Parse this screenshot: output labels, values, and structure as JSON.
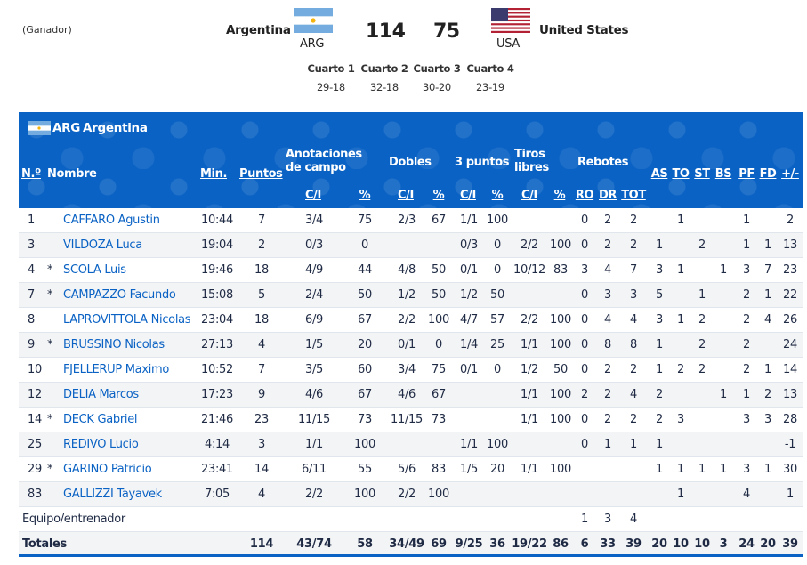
{
  "game": {
    "winner_note": "(Ganador)",
    "home": {
      "name": "Argentina",
      "abbr": "ARG",
      "score": "114"
    },
    "away": {
      "name": "United States",
      "abbr": "USA",
      "score": "75"
    },
    "quarters": [
      {
        "label": "Cuarto 1",
        "score": "29-18"
      },
      {
        "label": "Cuarto 2",
        "score": "32-18"
      },
      {
        "label": "Cuarto 3",
        "score": "30-20"
      },
      {
        "label": "Cuarto 4",
        "score": "23-19"
      }
    ]
  },
  "table": {
    "team_abbr": "ARG",
    "team_name": "Argentina",
    "headers": {
      "num": "N.º",
      "name": "Nombre",
      "min": "Min.",
      "pts": "Puntos",
      "fg": "Anotaciones de campo",
      "dobles": "Dobles",
      "tres": "3 puntos",
      "tl": "Tiros libres",
      "reb": "Rebotes",
      "as": "AS",
      "to": "TO",
      "st": "ST",
      "bs": "BS",
      "pf": "PF",
      "fd": "FD",
      "pm": "+/-",
      "ci": "C/I",
      "pct": "%",
      "ro": "RO",
      "dr": "DR",
      "tot": "TOT"
    },
    "players": [
      {
        "num": "1",
        "star": "",
        "name": "CAFFARO Agustin",
        "min": "10:44",
        "pts": "7",
        "fg_ci": "3/4",
        "fg_p": "75",
        "d_ci": "2/3",
        "d_p": "67",
        "t_ci": "1/1",
        "t_p": "100",
        "tl_ci": "",
        "tl_p": "",
        "ro": "0",
        "dr": "2",
        "tot": "2",
        "as": "",
        "to": "1",
        "st": "",
        "bs": "",
        "pf": "1",
        "fd": "",
        "pm": "2"
      },
      {
        "num": "3",
        "star": "",
        "name": "VILDOZA Luca",
        "min": "19:04",
        "pts": "2",
        "fg_ci": "0/3",
        "fg_p": "0",
        "d_ci": "",
        "d_p": "",
        "t_ci": "0/3",
        "t_p": "0",
        "tl_ci": "2/2",
        "tl_p": "100",
        "ro": "0",
        "dr": "2",
        "tot": "2",
        "as": "1",
        "to": "",
        "st": "2",
        "bs": "",
        "pf": "1",
        "fd": "1",
        "pm": "13"
      },
      {
        "num": "4",
        "star": "*",
        "name": "SCOLA Luis",
        "min": "19:46",
        "pts": "18",
        "fg_ci": "4/9",
        "fg_p": "44",
        "d_ci": "4/8",
        "d_p": "50",
        "t_ci": "0/1",
        "t_p": "0",
        "tl_ci": "10/12",
        "tl_p": "83",
        "ro": "3",
        "dr": "4",
        "tot": "7",
        "as": "3",
        "to": "1",
        "st": "",
        "bs": "1",
        "pf": "3",
        "fd": "7",
        "pm": "23"
      },
      {
        "num": "7",
        "star": "*",
        "name": "CAMPAZZO Facundo",
        "min": "15:08",
        "pts": "5",
        "fg_ci": "2/4",
        "fg_p": "50",
        "d_ci": "1/2",
        "d_p": "50",
        "t_ci": "1/2",
        "t_p": "50",
        "tl_ci": "",
        "tl_p": "",
        "ro": "0",
        "dr": "3",
        "tot": "3",
        "as": "5",
        "to": "",
        "st": "1",
        "bs": "",
        "pf": "2",
        "fd": "1",
        "pm": "22"
      },
      {
        "num": "8",
        "star": "",
        "name": "LAPROVITTOLA Nicolas",
        "min": "23:04",
        "pts": "18",
        "fg_ci": "6/9",
        "fg_p": "67",
        "d_ci": "2/2",
        "d_p": "100",
        "t_ci": "4/7",
        "t_p": "57",
        "tl_ci": "2/2",
        "tl_p": "100",
        "ro": "0",
        "dr": "4",
        "tot": "4",
        "as": "3",
        "to": "1",
        "st": "2",
        "bs": "",
        "pf": "2",
        "fd": "4",
        "pm": "26"
      },
      {
        "num": "9",
        "star": "*",
        "name": "BRUSSINO Nicolas",
        "min": "27:13",
        "pts": "4",
        "fg_ci": "1/5",
        "fg_p": "20",
        "d_ci": "0/1",
        "d_p": "0",
        "t_ci": "1/4",
        "t_p": "25",
        "tl_ci": "1/1",
        "tl_p": "100",
        "ro": "0",
        "dr": "8",
        "tot": "8",
        "as": "1",
        "to": "",
        "st": "2",
        "bs": "",
        "pf": "2",
        "fd": "",
        "pm": "24"
      },
      {
        "num": "10",
        "star": "",
        "name": "FJELLERUP Maximo",
        "min": "10:52",
        "pts": "7",
        "fg_ci": "3/5",
        "fg_p": "60",
        "d_ci": "3/4",
        "d_p": "75",
        "t_ci": "0/1",
        "t_p": "0",
        "tl_ci": "1/2",
        "tl_p": "50",
        "ro": "0",
        "dr": "2",
        "tot": "2",
        "as": "1",
        "to": "2",
        "st": "2",
        "bs": "",
        "pf": "2",
        "fd": "1",
        "pm": "14"
      },
      {
        "num": "12",
        "star": "",
        "name": "DELIA Marcos",
        "min": "17:23",
        "pts": "9",
        "fg_ci": "4/6",
        "fg_p": "67",
        "d_ci": "4/6",
        "d_p": "67",
        "t_ci": "",
        "t_p": "",
        "tl_ci": "1/1",
        "tl_p": "100",
        "ro": "2",
        "dr": "2",
        "tot": "4",
        "as": "2",
        "to": "",
        "st": "",
        "bs": "1",
        "pf": "1",
        "fd": "2",
        "pm": "13"
      },
      {
        "num": "14",
        "star": "*",
        "name": "DECK Gabriel",
        "min": "21:46",
        "pts": "23",
        "fg_ci": "11/15",
        "fg_p": "73",
        "d_ci": "11/15",
        "d_p": "73",
        "t_ci": "",
        "t_p": "",
        "tl_ci": "1/1",
        "tl_p": "100",
        "ro": "0",
        "dr": "2",
        "tot": "2",
        "as": "2",
        "to": "3",
        "st": "",
        "bs": "",
        "pf": "3",
        "fd": "3",
        "pm": "28"
      },
      {
        "num": "25",
        "star": "",
        "name": "REDIVO Lucio",
        "min": "4:14",
        "pts": "3",
        "fg_ci": "1/1",
        "fg_p": "100",
        "d_ci": "",
        "d_p": "",
        "t_ci": "1/1",
        "t_p": "100",
        "tl_ci": "",
        "tl_p": "",
        "ro": "0",
        "dr": "1",
        "tot": "1",
        "as": "1",
        "to": "",
        "st": "",
        "bs": "",
        "pf": "",
        "fd": "",
        "pm": "-1"
      },
      {
        "num": "29",
        "star": "*",
        "name": "GARINO Patricio",
        "min": "23:41",
        "pts": "14",
        "fg_ci": "6/11",
        "fg_p": "55",
        "d_ci": "5/6",
        "d_p": "83",
        "t_ci": "1/5",
        "t_p": "20",
        "tl_ci": "1/1",
        "tl_p": "100",
        "ro": "",
        "dr": "",
        "tot": "",
        "as": "1",
        "to": "1",
        "st": "1",
        "bs": "1",
        "pf": "3",
        "fd": "1",
        "pm": "30"
      },
      {
        "num": "83",
        "star": "",
        "name": "GALLIZZI Tayavek",
        "min": "7:05",
        "pts": "4",
        "fg_ci": "2/2",
        "fg_p": "100",
        "d_ci": "2/2",
        "d_p": "100",
        "t_ci": "",
        "t_p": "",
        "tl_ci": "",
        "tl_p": "",
        "ro": "",
        "dr": "",
        "tot": "",
        "as": "",
        "to": "1",
        "st": "",
        "bs": "",
        "pf": "4",
        "fd": "",
        "pm": "1"
      }
    ],
    "team_row": {
      "label": "Equipo/entrenador",
      "ro": "1",
      "dr": "3",
      "tot": "4"
    },
    "totals": {
      "label": "Totales",
      "pts": "114",
      "fg_ci": "43/74",
      "fg_p": "58",
      "d_ci": "34/49",
      "d_p": "69",
      "t_ci": "9/25",
      "t_p": "36",
      "tl_ci": "19/22",
      "tl_p": "86",
      "ro": "6",
      "dr": "33",
      "tot": "39",
      "as": "20",
      "to": "10",
      "st": "10",
      "bs": "3",
      "pf": "24",
      "fd": "20",
      "pm": "39"
    }
  },
  "colors": {
    "header_blue": "#0a62c4",
    "link_blue": "#0a62c4",
    "row_alt": "#f3f4f6"
  }
}
